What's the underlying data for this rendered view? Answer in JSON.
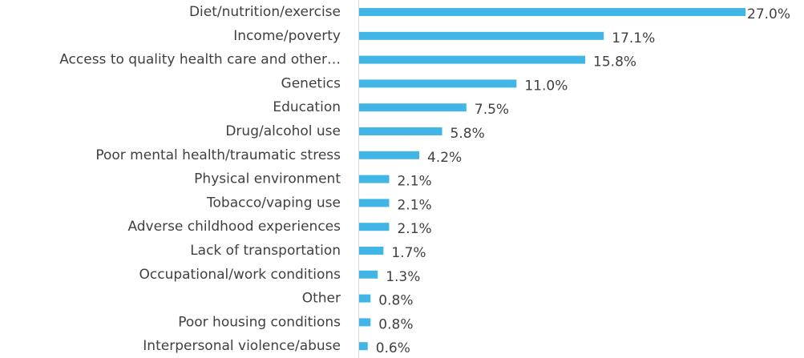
{
  "chart_data": {
    "type": "bar",
    "orientation": "horizontal",
    "color": "#41b6e6",
    "categories": [
      "Diet/nutrition/exercise",
      "Income/poverty",
      "Access to quality health care and other…",
      "Genetics",
      "Education",
      "Drug/alcohol use",
      "Poor mental health/traumatic stress",
      "Physical environment",
      "Tobacco/vaping use",
      "Adverse childhood experiences",
      "Lack of transportation",
      "Occupational/work conditions",
      "Other",
      "Poor housing conditions",
      "Interpersonal violence/abuse"
    ],
    "values": [
      27.0,
      17.1,
      15.8,
      11.0,
      7.5,
      5.8,
      4.2,
      2.1,
      2.1,
      2.1,
      1.7,
      1.3,
      0.8,
      0.8,
      0.6
    ],
    "value_labels": [
      "27.0%",
      "17.1%",
      "15.8%",
      "11.0%",
      "7.5%",
      "5.8%",
      "4.2%",
      "2.1%",
      "2.1%",
      "2.1%",
      "1.7%",
      "1.3%",
      "0.8%",
      "0.8%",
      "0.6%"
    ]
  }
}
